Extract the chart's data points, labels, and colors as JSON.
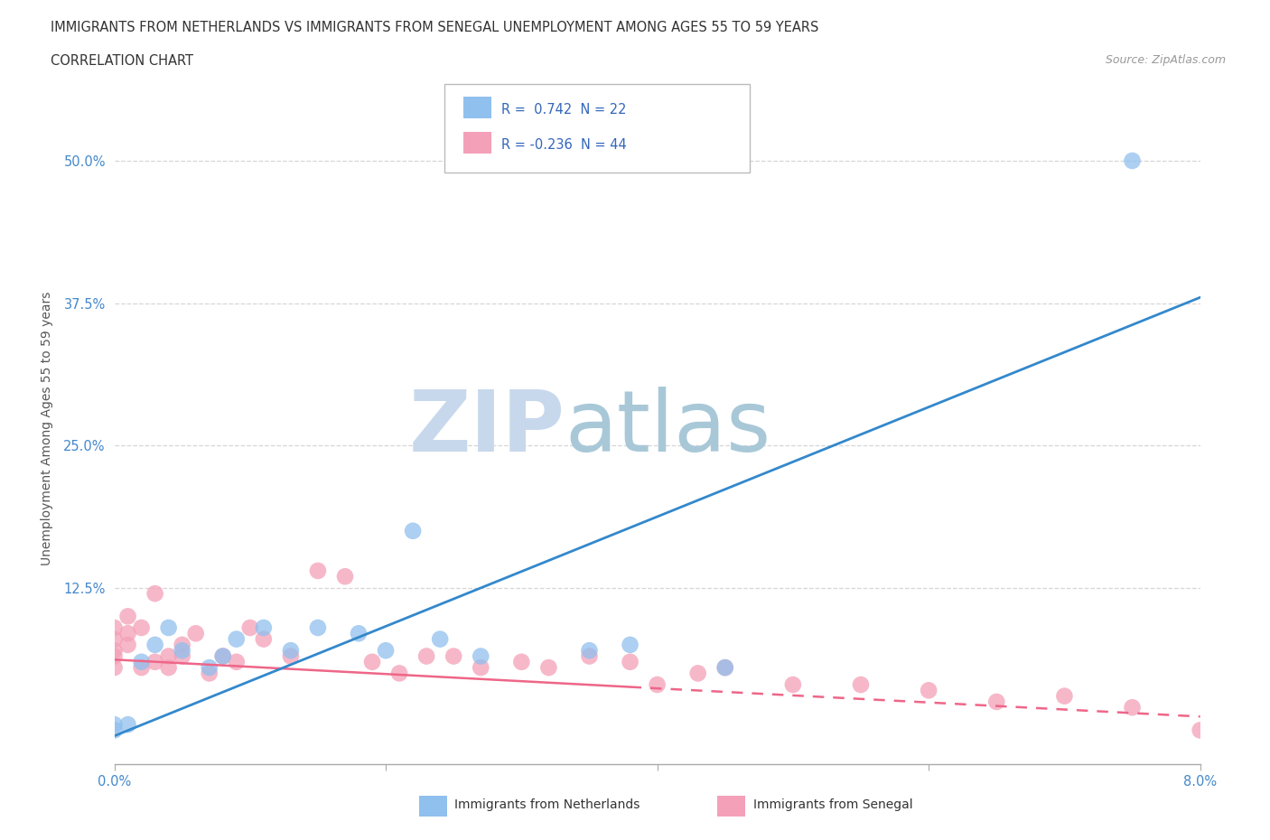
{
  "title_line1": "IMMIGRANTS FROM NETHERLANDS VS IMMIGRANTS FROM SENEGAL UNEMPLOYMENT AMONG AGES 55 TO 59 YEARS",
  "title_line2": "CORRELATION CHART",
  "source_text": "Source: ZipAtlas.com",
  "ylabel": "Unemployment Among Ages 55 to 59 years",
  "xlim": [
    0.0,
    0.08
  ],
  "ylim": [
    -0.03,
    0.56
  ],
  "xtick_vals": [
    0.0,
    0.02,
    0.04,
    0.06,
    0.08
  ],
  "xtick_labels": [
    "0.0%",
    "",
    "",
    "",
    "8.0%"
  ],
  "ytick_positions": [
    0.125,
    0.25,
    0.375,
    0.5
  ],
  "ytick_labels": [
    "12.5%",
    "25.0%",
    "37.5%",
    "50.0%"
  ],
  "r_netherlands": 0.742,
  "n_netherlands": 22,
  "r_senegal": -0.236,
  "n_senegal": 44,
  "color_netherlands": "#90C0EE",
  "color_senegal": "#F4A0B8",
  "line_color_netherlands": "#3388CC",
  "line_color_senegal": "#EE6688",
  "watermark_zip": "ZIP",
  "watermark_atlas": "atlas",
  "watermark_color_zip": "#C8D8EC",
  "watermark_color_atlas": "#A8C8D8",
  "netherlands_x": [
    0.0,
    0.0,
    0.001,
    0.002,
    0.003,
    0.004,
    0.005,
    0.007,
    0.008,
    0.009,
    0.011,
    0.013,
    0.015,
    0.018,
    0.02,
    0.022,
    0.024,
    0.027,
    0.035,
    0.038,
    0.045,
    0.075
  ],
  "netherlands_y": [
    0.0,
    0.005,
    0.005,
    0.06,
    0.075,
    0.09,
    0.07,
    0.055,
    0.065,
    0.08,
    0.09,
    0.07,
    0.09,
    0.085,
    0.07,
    0.175,
    0.08,
    0.065,
    0.07,
    0.075,
    0.055,
    0.5
  ],
  "senegal_x": [
    0.0,
    0.0,
    0.0,
    0.0,
    0.0,
    0.001,
    0.001,
    0.001,
    0.002,
    0.002,
    0.003,
    0.003,
    0.004,
    0.004,
    0.005,
    0.005,
    0.006,
    0.007,
    0.008,
    0.009,
    0.01,
    0.011,
    0.013,
    0.015,
    0.017,
    0.019,
    0.021,
    0.023,
    0.025,
    0.027,
    0.03,
    0.032,
    0.035,
    0.038,
    0.04,
    0.043,
    0.045,
    0.05,
    0.055,
    0.06,
    0.065,
    0.07,
    0.075,
    0.08
  ],
  "senegal_y": [
    0.055,
    0.065,
    0.07,
    0.08,
    0.09,
    0.075,
    0.085,
    0.1,
    0.055,
    0.09,
    0.06,
    0.12,
    0.065,
    0.055,
    0.065,
    0.075,
    0.085,
    0.05,
    0.065,
    0.06,
    0.09,
    0.08,
    0.065,
    0.14,
    0.135,
    0.06,
    0.05,
    0.065,
    0.065,
    0.055,
    0.06,
    0.055,
    0.065,
    0.06,
    0.04,
    0.05,
    0.055,
    0.04,
    0.04,
    0.035,
    0.025,
    0.03,
    0.02,
    0.0
  ],
  "nl_line_x0": 0.0,
  "nl_line_y0": -0.005,
  "nl_line_x1": 0.08,
  "nl_line_y1": 0.38,
  "sg_line_solid_x0": 0.0,
  "sg_line_solid_y0": 0.062,
  "sg_line_solid_x1": 0.038,
  "sg_line_solid_y1": 0.038,
  "sg_line_dash_x0": 0.038,
  "sg_line_dash_y0": 0.038,
  "sg_line_dash_x1": 0.08,
  "sg_line_dash_y1": 0.012
}
